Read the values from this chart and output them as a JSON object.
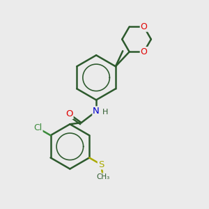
{
  "background_color": "#ebebeb",
  "bond_color": "#2d5a2d",
  "bond_width": 1.8,
  "atom_colors": {
    "O": "#e00000",
    "N": "#0000cc",
    "Cl": "#3a8a3a",
    "S": "#aaaa00",
    "C": "#2d5a2d",
    "H": "#2d5a2d"
  },
  "font_size_atom": 10,
  "font_size_small": 8
}
